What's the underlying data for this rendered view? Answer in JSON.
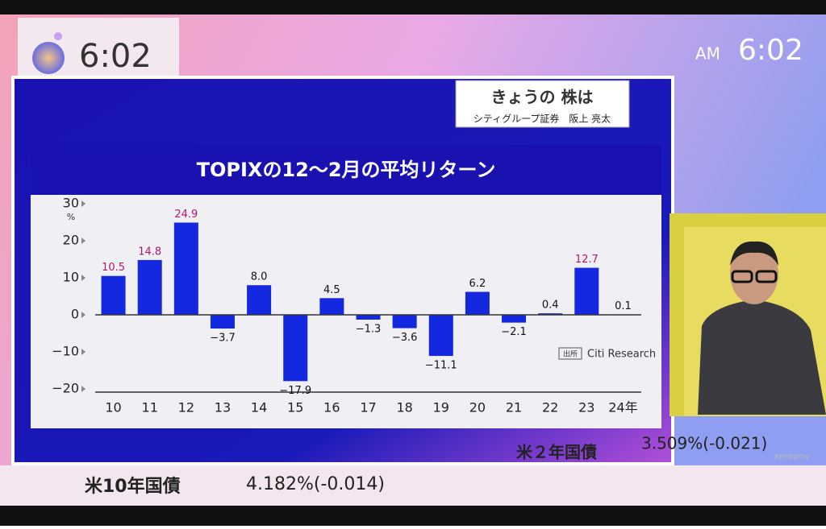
{
  "screen": {
    "clock_left": "6:02",
    "am": "AM",
    "clock_right": "6:02",
    "segment": "きょうの 株は",
    "guest": "シティグループ証券　阪上 亮太",
    "ticker_1_name": "米10年国債",
    "ticker_1_value": "4.182%(-0.014)",
    "ticker_2_name": "米２年国債",
    "ticker_2_value": "3.509%(-0.021)",
    "provider": "REFINITIV"
  },
  "chart_data": {
    "type": "bar",
    "title": "TOPIXの12〜2月の平均リターン",
    "categories": [
      "10",
      "11",
      "12",
      "13",
      "14",
      "15",
      "16",
      "17",
      "18",
      "19",
      "20",
      "21",
      "22",
      "23",
      "24年"
    ],
    "values": [
      10.5,
      14.8,
      24.9,
      -3.7,
      8.0,
      -17.9,
      4.5,
      -1.3,
      -3.6,
      -11.1,
      6.2,
      -2.1,
      0.4,
      12.7,
      0.1
    ],
    "value_labels": [
      "10.5",
      "14.8",
      "24.9",
      "−3.7",
      "8.0",
      "−17.9",
      "4.5",
      "−1.3",
      "−3.6",
      "−11.1",
      "6.2",
      "−2.1",
      "0.4",
      "12.7",
      "0.1"
    ],
    "value_label_colors": [
      "#b0186b",
      "#b0186b",
      "#b0186b",
      "#111",
      "#111",
      "#111",
      "#111",
      "#111",
      "#111",
      "#111",
      "#111",
      "#111",
      "#111",
      "#b0186b",
      "#111"
    ],
    "color": "#1428e0",
    "y_unit": "%",
    "ylim": [
      -20,
      30
    ],
    "yticks": [
      30,
      20,
      10,
      0,
      {
        "value": -10,
        "label": "−10"
      },
      {
        "value": -20,
        "label": "−20"
      }
    ],
    "grid": false,
    "source_badge": "出所",
    "source": "Citi Research"
  }
}
